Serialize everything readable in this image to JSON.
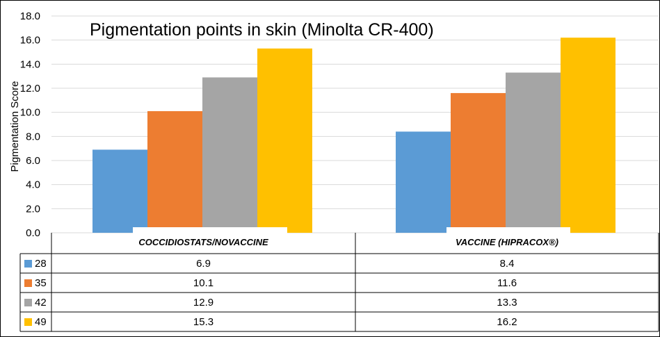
{
  "chart_data": {
    "type": "bar",
    "title": "Pigmentation points in skin (Minolta CR-400)",
    "xlabel": "",
    "ylabel": "Pigmentation Score",
    "ylim": [
      0,
      18
    ],
    "yticks": [
      "0.0",
      "2.0",
      "4.0",
      "6.0",
      "8.0",
      "10.0",
      "12.0",
      "14.0",
      "16.0",
      "18.0"
    ],
    "grid": true,
    "legend": "data-table-left",
    "categories": [
      "COCCIDIOSTATS/NOVACCINE",
      "VACCINE (HIPRACOX®)"
    ],
    "series": [
      {
        "name": "28",
        "color": "#5B9BD5",
        "values": [
          6.9,
          8.4
        ]
      },
      {
        "name": "35",
        "color": "#ED7D31",
        "values": [
          10.1,
          11.6
        ]
      },
      {
        "name": "42",
        "color": "#A5A5A5",
        "values": [
          12.9,
          13.3
        ]
      },
      {
        "name": "49",
        "color": "#FFC000",
        "values": [
          15.3,
          16.2
        ]
      }
    ],
    "table_values": [
      [
        "6.9",
        "8.4"
      ],
      [
        "10.1",
        "11.6"
      ],
      [
        "12.9",
        "13.3"
      ],
      [
        "15.3",
        "16.2"
      ]
    ]
  }
}
